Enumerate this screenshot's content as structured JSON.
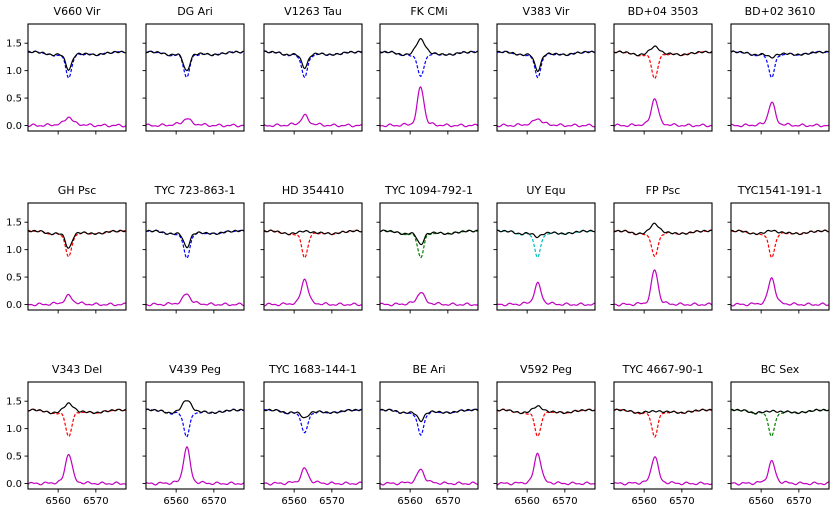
{
  "chart_data": {
    "type": "line",
    "description_note": "Grid of 21 small-multiple spectra panels around H-alpha",
    "xlim": [
      6552,
      6578
    ],
    "ylim": [
      -0.1,
      1.85
    ],
    "x_ticks": [
      6560,
      6570
    ],
    "y_ticks": [
      0.0,
      0.5,
      1.0,
      1.5
    ],
    "y_tick_labels": [
      "0.0",
      "0.5",
      "1.0",
      "1.5"
    ],
    "x_tick_labels": [
      "6560",
      "6570"
    ],
    "colors": {
      "observed": "#000000",
      "difference": "#bf00bf",
      "blue": "#0000ff",
      "red": "#ff0000",
      "green": "#008000",
      "cyan": "#00bfbf"
    },
    "panels": [
      {
        "title": "V660 Vir",
        "template_color": "blue",
        "obs_depth": 0.27,
        "tmpl_depth": 0.38,
        "emission": 0.12
      },
      {
        "title": "DG Ari",
        "template_color": "blue",
        "obs_depth": 0.3,
        "tmpl_depth": 0.38,
        "emission": 0.09
      },
      {
        "title": "V1263 Tau",
        "template_color": "blue",
        "obs_depth": 0.24,
        "tmpl_depth": 0.38,
        "emission": 0.14
      },
      {
        "title": "FK CMi",
        "template_color": "blue",
        "obs_depth": -0.28,
        "tmpl_depth": 0.38,
        "emission": 0.66
      },
      {
        "title": "V383 Vir",
        "template_color": "blue",
        "obs_depth": 0.29,
        "tmpl_depth": 0.38,
        "emission": 0.09
      },
      {
        "title": "BD+04 3503",
        "template_color": "red",
        "obs_depth": -0.15,
        "tmpl_depth": 0.4,
        "emission": 0.46
      },
      {
        "title": "BD+02 3610",
        "template_color": "blue",
        "obs_depth": 0.05,
        "tmpl_depth": 0.38,
        "emission": 0.38
      },
      {
        "title": "GH Psc",
        "template_color": "red",
        "obs_depth": 0.27,
        "tmpl_depth": 0.4,
        "emission": 0.12
      },
      {
        "title": "TYC 723-863-1",
        "template_color": "blue",
        "obs_depth": 0.25,
        "tmpl_depth": 0.42,
        "emission": 0.16
      },
      {
        "title": "HD 354410",
        "template_color": "red",
        "obs_depth": -0.05,
        "tmpl_depth": 0.4,
        "emission": 0.43
      },
      {
        "title": "TYC 1094-792-1",
        "template_color": "green",
        "obs_depth": 0.2,
        "tmpl_depth": 0.4,
        "emission": 0.19
      },
      {
        "title": "UY Equ",
        "template_color": "cyan",
        "obs_depth": 0.06,
        "tmpl_depth": 0.4,
        "emission": 0.34
      },
      {
        "title": "FP Psc",
        "template_color": "red",
        "obs_depth": -0.18,
        "tmpl_depth": 0.4,
        "emission": 0.59
      },
      {
        "title": "TYC1541-191-1",
        "template_color": "red",
        "obs_depth": -0.06,
        "tmpl_depth": 0.4,
        "emission": 0.45
      },
      {
        "title": "V343 Del",
        "template_color": "red",
        "obs_depth": -0.17,
        "tmpl_depth": 0.4,
        "emission": 0.51
      },
      {
        "title": "V439 Peg",
        "template_color": "blue",
        "obs_depth": -0.23,
        "tmpl_depth": 0.4,
        "emission": 0.62
      },
      {
        "title": "TYC 1683-144-1",
        "template_color": "blue",
        "obs_depth": 0.1,
        "tmpl_depth": 0.35,
        "emission": 0.23
      },
      {
        "title": "BE Ari",
        "template_color": "blue",
        "obs_depth": 0.15,
        "tmpl_depth": 0.38,
        "emission": 0.22
      },
      {
        "title": "V592 Peg",
        "template_color": "red",
        "obs_depth": -0.12,
        "tmpl_depth": 0.4,
        "emission": 0.52
      },
      {
        "title": "TYC 4667-90-1",
        "template_color": "red",
        "obs_depth": -0.03,
        "tmpl_depth": 0.4,
        "emission": 0.46
      },
      {
        "title": "BC Sex",
        "template_color": "green",
        "obs_depth": -0.03,
        "tmpl_depth": 0.4,
        "emission": 0.36
      }
    ]
  }
}
